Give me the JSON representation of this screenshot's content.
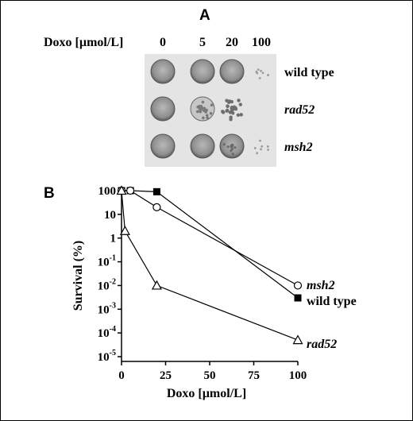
{
  "panel_a": {
    "label": "A",
    "dose_label": "Doxo [µmol/L]",
    "doses": [
      "0",
      "5",
      "20",
      "100"
    ],
    "strains": [
      {
        "name": "wild type",
        "italic": false,
        "growth": [
          "full",
          "full",
          "full",
          "sparse"
        ]
      },
      {
        "name": "rad52",
        "italic": true,
        "growth": [
          "full",
          "mottled",
          "colonies",
          "none"
        ]
      },
      {
        "name": "msh2",
        "italic": true,
        "growth": [
          "full",
          "full",
          "dense",
          "sparse"
        ]
      }
    ]
  },
  "panel_b": {
    "label": "B"
  },
  "chart_data": {
    "type": "line",
    "xlabel": "Doxo [µmol/L]",
    "ylabel": "Survival (%)",
    "xlim": [
      0,
      100
    ],
    "ylim_log10": [
      -5,
      2
    ],
    "y_scale": "log",
    "x_ticks": [
      0,
      25,
      50,
      75,
      100
    ],
    "y_ticks": [
      {
        "value": 100,
        "base": "100",
        "exp": ""
      },
      {
        "value": 10,
        "base": "10",
        "exp": ""
      },
      {
        "value": 1,
        "base": "1",
        "exp": ""
      },
      {
        "value": 0.1,
        "base": "10",
        "exp": "-1"
      },
      {
        "value": 0.01,
        "base": "10",
        "exp": "-2"
      },
      {
        "value": 0.001,
        "base": "10",
        "exp": "-3"
      },
      {
        "value": 0.0001,
        "base": "10",
        "exp": "-4"
      },
      {
        "value": 1e-05,
        "base": "10",
        "exp": "-5"
      }
    ],
    "grid": false,
    "series": [
      {
        "name": "wild type",
        "marker": "filled-square",
        "x": [
          0,
          5,
          20,
          100
        ],
        "y": [
          100,
          100,
          90,
          0.003
        ]
      },
      {
        "name": "msh2",
        "marker": "open-circle",
        "x": [
          0,
          5,
          20,
          100
        ],
        "y": [
          100,
          100,
          20,
          0.01
        ]
      },
      {
        "name": "rad52",
        "marker": "open-triangle",
        "x": [
          0,
          2,
          20,
          100
        ],
        "y": [
          100,
          2,
          0.01,
          5e-05
        ]
      }
    ]
  }
}
